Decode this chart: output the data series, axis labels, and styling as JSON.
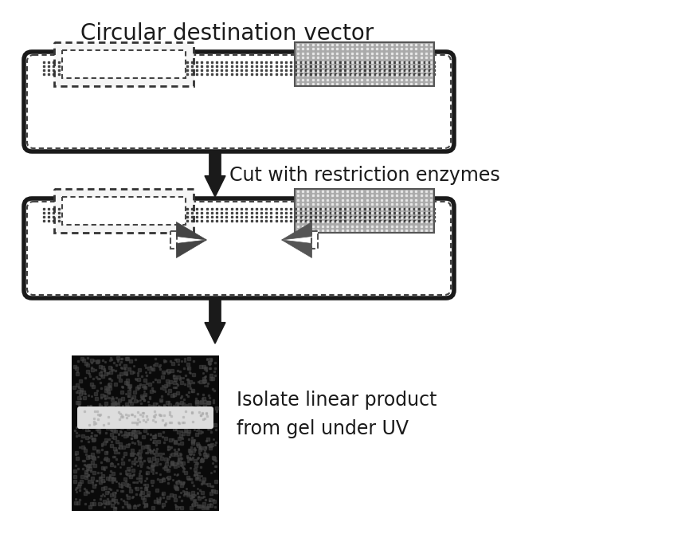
{
  "title": "Circular destination vector",
  "step2_label": "Cut with restriction enzymes",
  "step3_label": "Isolate linear product\nfrom gel under UV",
  "bg_color": "#ffffff",
  "vector_fill": "#ffffff",
  "vector_border": "#1a1a1a",
  "stipple_color": "#555555",
  "small_box_fill": "#ffffff",
  "dotted_fill": "#aaaaaa",
  "arrow_color": "#1a1a1a",
  "gel_bg": "#111111",
  "gel_band_color": "#dddddd",
  "text_color": "#1a1a1a",
  "title_fontsize": 20,
  "label_fontsize": 17,
  "figw": 8.65,
  "figh": 6.75,
  "dpi": 100
}
